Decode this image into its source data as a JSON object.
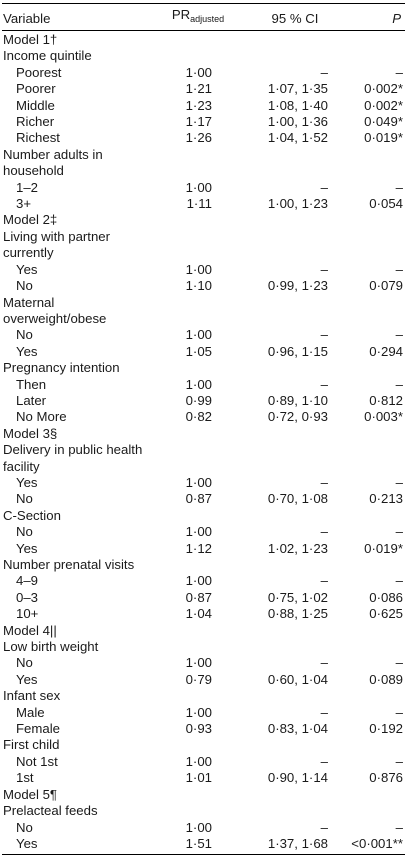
{
  "header": {
    "variable": "Variable",
    "pr_main": "PR",
    "pr_sub": "adjusted",
    "ci": "95 % CI",
    "p": "P"
  },
  "rows": [
    {
      "kind": "sec",
      "label": "Model 1†"
    },
    {
      "kind": "grp",
      "label": "Income quintile"
    },
    {
      "kind": "lvl",
      "label": "Poorest",
      "pr": "1·00",
      "ci": "–",
      "p": "–"
    },
    {
      "kind": "lvl",
      "label": "Poorer",
      "pr": "1·21",
      "ci": "1·07, 1·35",
      "p": "0·002*"
    },
    {
      "kind": "lvl",
      "label": "Middle",
      "pr": "1·23",
      "ci": "1·08, 1·40",
      "p": "0·002*"
    },
    {
      "kind": "lvl",
      "label": "Richer",
      "pr": "1·17",
      "ci": "1·00, 1·36",
      "p": "0·049*"
    },
    {
      "kind": "lvl",
      "label": "Richest",
      "pr": "1·26",
      "ci": "1·04, 1·52",
      "p": "0·019*"
    },
    {
      "kind": "grp",
      "label": "Number adults in"
    },
    {
      "kind": "grp",
      "label": "household"
    },
    {
      "kind": "lvl",
      "label": "1–2",
      "pr": "1·00",
      "ci": "–",
      "p": "–"
    },
    {
      "kind": "lvl",
      "label": "3+",
      "pr": "1·11",
      "ci": "1·00, 1·23",
      "p": "0·054"
    },
    {
      "kind": "sec",
      "label": "Model 2‡"
    },
    {
      "kind": "grp",
      "label": "Living with partner"
    },
    {
      "kind": "grp",
      "label": "currently"
    },
    {
      "kind": "lvl",
      "label": "Yes",
      "pr": "1·00",
      "ci": "–",
      "p": "–"
    },
    {
      "kind": "lvl",
      "label": "No",
      "pr": "1·10",
      "ci": "0·99, 1·23",
      "p": "0·079"
    },
    {
      "kind": "grp",
      "label": "Maternal overweight/obese"
    },
    {
      "kind": "lvl",
      "label": "No",
      "pr": "1·00",
      "ci": "–",
      "p": "–"
    },
    {
      "kind": "lvl",
      "label": "Yes",
      "pr": "1·05",
      "ci": "0·96, 1·15",
      "p": "0·294"
    },
    {
      "kind": "grp",
      "label": "Pregnancy intention"
    },
    {
      "kind": "lvl",
      "label": "Then",
      "pr": "1·00",
      "ci": "–",
      "p": "–"
    },
    {
      "kind": "lvl",
      "label": "Later",
      "pr": "0·99",
      "ci": "0·89, 1·10",
      "p": "0·812"
    },
    {
      "kind": "lvl",
      "label": "No More",
      "pr": "0·82",
      "ci": "0·72, 0·93",
      "p": "0·003*"
    },
    {
      "kind": "sec",
      "label": "Model 3§"
    },
    {
      "kind": "grp",
      "label": "Delivery in public health"
    },
    {
      "kind": "grp",
      "label": "facility"
    },
    {
      "kind": "lvl",
      "label": "Yes",
      "pr": "1·00",
      "ci": "–",
      "p": "–"
    },
    {
      "kind": "lvl",
      "label": "No",
      "pr": "0·87",
      "ci": "0·70, 1·08",
      "p": "0·213"
    },
    {
      "kind": "grp",
      "label": "C-Section"
    },
    {
      "kind": "lvl",
      "label": "No",
      "pr": "1·00",
      "ci": "–",
      "p": "–"
    },
    {
      "kind": "lvl",
      "label": "Yes",
      "pr": "1·12",
      "ci": "1·02, 1·23",
      "p": "0·019*"
    },
    {
      "kind": "grp",
      "label": "Number prenatal visits"
    },
    {
      "kind": "lvl",
      "label": "4–9",
      "pr": "1·00",
      "ci": "–",
      "p": "–"
    },
    {
      "kind": "lvl",
      "label": "0–3",
      "pr": "0·87",
      "ci": "0·75, 1·02",
      "p": "0·086"
    },
    {
      "kind": "lvl",
      "label": "10+",
      "pr": "1·04",
      "ci": "0·88, 1·25",
      "p": "0·625"
    },
    {
      "kind": "sec",
      "label": "Model 4||"
    },
    {
      "kind": "grp",
      "label": "Low birth weight"
    },
    {
      "kind": "lvl",
      "label": "No",
      "pr": "1·00",
      "ci": "–",
      "p": "–"
    },
    {
      "kind": "lvl",
      "label": "Yes",
      "pr": "0·79",
      "ci": "0·60, 1·04",
      "p": "0·089"
    },
    {
      "kind": "grp",
      "label": "Infant sex"
    },
    {
      "kind": "lvl",
      "label": "Male",
      "pr": "1·00",
      "ci": "–",
      "p": "–"
    },
    {
      "kind": "lvl",
      "label": "Female",
      "pr": "0·93",
      "ci": "0·83, 1·04",
      "p": "0·192"
    },
    {
      "kind": "grp",
      "label": "First child"
    },
    {
      "kind": "lvl",
      "label": "Not 1st",
      "pr": "1·00",
      "ci": "–",
      "p": "–"
    },
    {
      "kind": "lvl",
      "label": "1st",
      "pr": "1·01",
      "ci": "0·90, 1·14",
      "p": "0·876"
    },
    {
      "kind": "sec",
      "label": "Model 5¶"
    },
    {
      "kind": "grp",
      "label": "Prelacteal feeds"
    },
    {
      "kind": "lvl",
      "label": "No",
      "pr": "1·00",
      "ci": "–",
      "p": "–"
    },
    {
      "kind": "lvl",
      "label": "Yes",
      "pr": "1·51",
      "ci": "1·37, 1·68",
      "p": "<0·001**"
    }
  ]
}
